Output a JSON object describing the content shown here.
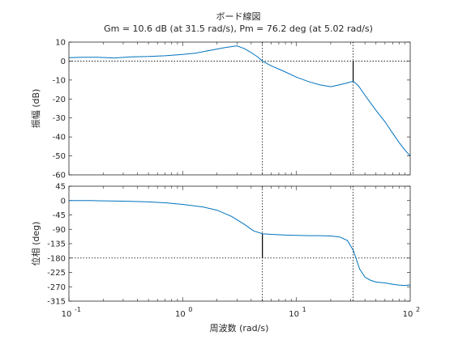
{
  "chart_data": {
    "type": "line",
    "title": "ボード線図",
    "subtitle": "Gm = 10.6 dB (at 31.5 rad/s), Pm = 76.2 deg (at 5.02 rad/s)",
    "xlabel": "周波数  (rad/s)",
    "xscale": "log",
    "xlim": [
      0.1,
      100
    ],
    "x_ticks": [
      {
        "value": 0.1,
        "base": "10",
        "exp": "-1"
      },
      {
        "value": 1,
        "base": "10",
        "exp": "0"
      },
      {
        "value": 10,
        "base": "10",
        "exp": "1"
      },
      {
        "value": 100,
        "base": "10",
        "exp": "2"
      }
    ],
    "line_color": "#0072bd",
    "magnitude": {
      "ylabel": "振幅 (dB)",
      "ylim": [
        -60,
        10
      ],
      "yticks": [
        "10",
        "0",
        "-10",
        "-20",
        "-30",
        "-40",
        "-50",
        "-60"
      ],
      "points": [
        [
          0.1,
          1.8
        ],
        [
          0.13,
          2.0
        ],
        [
          0.18,
          2.0
        ],
        [
          0.25,
          1.6
        ],
        [
          0.35,
          2.2
        ],
        [
          0.5,
          2.4
        ],
        [
          0.7,
          2.8
        ],
        [
          1.0,
          3.5
        ],
        [
          1.3,
          4.2
        ],
        [
          1.8,
          5.8
        ],
        [
          2.3,
          7.0
        ],
        [
          3.0,
          8.0
        ],
        [
          3.5,
          6.5
        ],
        [
          4.0,
          4.5
        ],
        [
          4.6,
          2.0
        ],
        [
          5.02,
          0.0
        ],
        [
          6.0,
          -2.5
        ],
        [
          7.5,
          -5.0
        ],
        [
          10,
          -8.5
        ],
        [
          13,
          -11
        ],
        [
          16,
          -12.5
        ],
        [
          20,
          -13.5
        ],
        [
          24,
          -12.5
        ],
        [
          28,
          -11.5
        ],
        [
          31.5,
          -10.6
        ],
        [
          35,
          -13
        ],
        [
          40,
          -18
        ],
        [
          50,
          -26
        ],
        [
          60,
          -32
        ],
        [
          70,
          -38
        ],
        [
          80,
          -43
        ],
        [
          90,
          -47
        ],
        [
          100,
          -50
        ]
      ],
      "ref_line": 0,
      "gain_margin_marker": {
        "x": 31.5,
        "from": 0,
        "to": -10.6
      }
    },
    "phase": {
      "ylabel": "位相 (deg)",
      "ylim": [
        -315,
        45
      ],
      "yticks": [
        "45",
        "0",
        "-45",
        "-90",
        "-135",
        "-180",
        "-225",
        "-270",
        "-315"
      ],
      "points": [
        [
          0.1,
          0
        ],
        [
          0.15,
          0
        ],
        [
          0.2,
          -1
        ],
        [
          0.3,
          -2
        ],
        [
          0.5,
          -4
        ],
        [
          0.7,
          -7
        ],
        [
          1.0,
          -12
        ],
        [
          1.5,
          -20
        ],
        [
          2.0,
          -30
        ],
        [
          2.7,
          -50
        ],
        [
          3.5,
          -75
        ],
        [
          4.2,
          -95
        ],
        [
          5.02,
          -104
        ],
        [
          6,
          -106
        ],
        [
          8,
          -108
        ],
        [
          10,
          -109
        ],
        [
          13,
          -110
        ],
        [
          16,
          -110
        ],
        [
          20,
          -111
        ],
        [
          24,
          -114
        ],
        [
          28,
          -125
        ],
        [
          31.5,
          -155
        ],
        [
          36,
          -215
        ],
        [
          40,
          -240
        ],
        [
          45,
          -250
        ],
        [
          50,
          -255
        ],
        [
          60,
          -258
        ],
        [
          70,
          -262
        ],
        [
          80,
          -265
        ],
        [
          90,
          -266
        ],
        [
          100,
          -264
        ]
      ],
      "ref_line": -180,
      "phase_margin_marker": {
        "x": 5.02,
        "from": -180,
        "to": -103.8
      }
    },
    "crossover_lines": [
      5.02,
      31.5
    ]
  }
}
